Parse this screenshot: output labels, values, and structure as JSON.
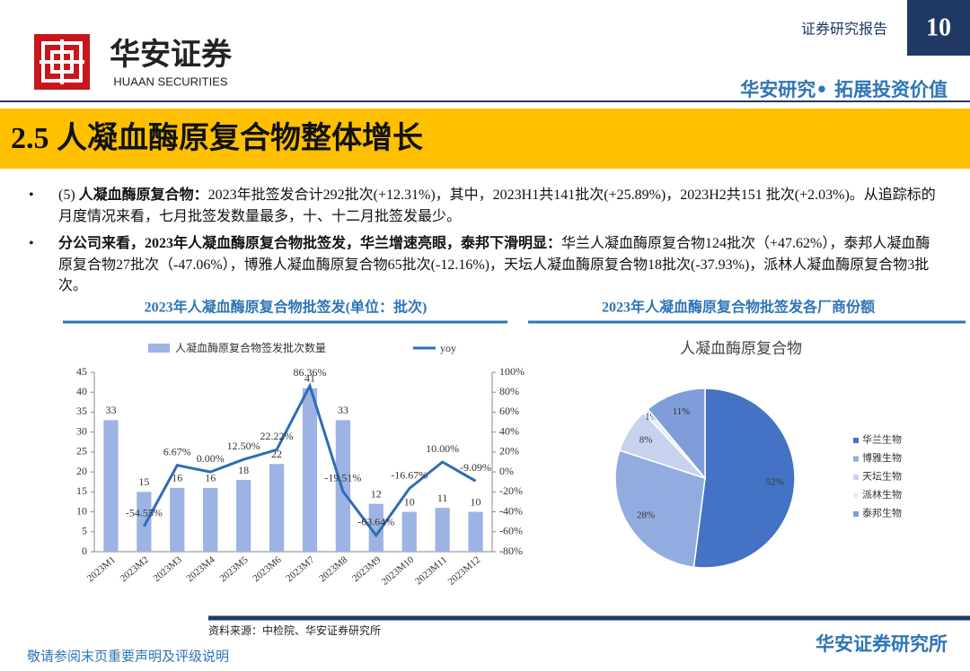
{
  "header": {
    "report_type": "证券研究报告",
    "page_number": "10",
    "brand_cn": "华安证券",
    "brand_en": "HUAAN SECURITIES",
    "slogan": "华安研究• 拓展投资价值"
  },
  "banner_title": "2.5 人凝血酶原复合物整体增长",
  "bullets": [
    {
      "prefix": "(5) ",
      "bold": "人凝血酶原复合物：",
      "text": "2023年批签发合计292批次(+12.31%)，其中，2023H1共141批次(+25.89%)，2023H2共151 批次(+2.03%)。从追踪标的月度情况来看，七月批签发数量最多，十、十二月批签发最少。"
    },
    {
      "prefix": "",
      "bold": "分公司来看，2023年人凝血酶原复合物批签发，华兰增速亮眼，泰邦下滑明显：",
      "text": "华兰人凝血酶原复合物124批次（+47.62%），泰邦人凝血酶原复合物27批次（-47.06%），博雅人凝血酶原复合物65批次(-12.16%)，天坛人凝血酶原复合物18批次(-37.93%)，派林人凝血酶原复合物3批次。"
    }
  ],
  "chart_data": [
    {
      "type": "bar",
      "title": "2023年人凝血酶原复合物批签发(单位：批次)",
      "categories": [
        "2023M1",
        "2023M2",
        "2023M3",
        "2023M4",
        "2023M5",
        "2023M6",
        "2023M7",
        "2023M8",
        "2023M9",
        "2023M10",
        "2023M11",
        "2023M12"
      ],
      "series": [
        {
          "name": "人凝血酶原复合物签发批次数量",
          "type": "bar",
          "color": "#9DB3E3",
          "values": [
            33,
            15,
            16,
            16,
            18,
            22,
            41,
            33,
            12,
            10,
            11,
            10
          ]
        },
        {
          "name": "yoy",
          "type": "line",
          "axis": "y2",
          "color": "#2E6DB4",
          "values": [
            null,
            -54.55,
            6.67,
            0,
            12.5,
            22.22,
            86.36,
            -19.51,
            -63.64,
            -16.67,
            10,
            -9.09
          ],
          "value_labels": [
            null,
            "-54.55%",
            "6.67%",
            "0.00%",
            "12.50%",
            "22.22%",
            "86.36%",
            "-19.51%",
            "-63.64%",
            "-16.67%",
            "10.00%",
            "-9.09%"
          ]
        }
      ],
      "ylim": [
        0,
        45
      ],
      "yticks": [
        0,
        5,
        10,
        15,
        20,
        25,
        30,
        35,
        40,
        45
      ],
      "y2lim": [
        -80,
        100
      ],
      "y2ticks": [
        {
          "value": -80,
          "label": "-80%"
        },
        {
          "value": -60,
          "label": "-60%"
        },
        {
          "value": -40,
          "label": "-40%"
        },
        {
          "value": -20,
          "label": "-20%"
        },
        {
          "value": 0,
          "label": "0%"
        },
        {
          "value": 20,
          "label": "20%"
        },
        {
          "value": 40,
          "label": "40%"
        },
        {
          "value": 60,
          "label": "60%"
        },
        {
          "value": 80,
          "label": "80%"
        },
        {
          "value": 100,
          "label": "100%"
        }
      ],
      "legend": "top"
    },
    {
      "type": "pie",
      "title": "2023年人凝血酶原复合物批签发各厂商份额",
      "subtitle": "人凝血酶原复合物",
      "categories": [
        "华兰生物",
        "博雅生物",
        "天坛生物",
        "派林生物",
        "泰邦生物"
      ],
      "values": [
        52,
        28,
        8,
        1,
        11
      ],
      "value_labels": [
        "52%",
        "28%",
        "8%",
        "1%",
        "11%"
      ],
      "colors": [
        "#4472C4",
        "#93ACDF",
        "#C7D3EE",
        "#E8EDF7",
        "#7F9ED9"
      ],
      "legend": "right"
    }
  ],
  "footer": {
    "source": "资料来源：中检院、华安证券研究所",
    "disclaimer": "敬请参阅末页重要声明及评级说明",
    "institute": "华安证券研究所"
  }
}
